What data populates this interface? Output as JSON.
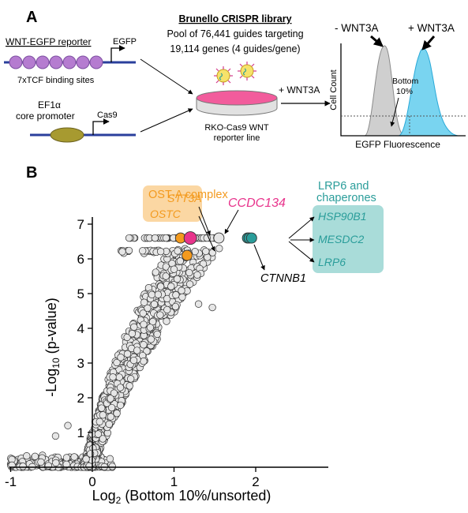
{
  "panelA": {
    "label": "A",
    "reporter_title": "WNT-EGFP reporter",
    "egfp_gene": "EGFP",
    "tcf_sites": "7xTCF binding sites",
    "promoter_label_1": "EF1α",
    "promoter_label_2": "core promoter",
    "cas9_gene": "Cas9",
    "library_title": "Brunello CRISPR library",
    "library_line1": "Pool of 76,441 guides targeting",
    "library_line2": "19,114 genes (4 guides/gene)",
    "dish_line1": "RKO-Cas9 WNT",
    "dish_line2": "reporter line",
    "add_wnt": "+ WNT3A",
    "histogram": {
      "minus_label": "- WNT3A",
      "plus_label": "+ WNT3A",
      "ylabel": "Cell Count",
      "xlabel": "EGFP Fluorescence",
      "bottom_label_1": "Bottom",
      "bottom_label_2": "10%",
      "colors": {
        "minus": "#cfcfcf",
        "plus": "#79d4f0",
        "plus_edge": "#2aa9d8"
      }
    }
  },
  "panelB": {
    "label": "B",
    "ost_group": "OST-A complex",
    "ost_genes": [
      "STT3A",
      "OSTC"
    ],
    "ccdc": "CCDC134",
    "lrp_group_1": "LRP6 and",
    "lrp_group_2": "chaperones",
    "lrp_genes": [
      "HSP90B1",
      "MESDC2",
      "LRP6"
    ],
    "ctnnb1": "CTNNB1",
    "colors": {
      "ost": "#f39a1e",
      "ost_box": "#fbd7a3",
      "ccdc": "#e8348c",
      "lrp": "#2a9d9a",
      "lrp_box": "#a9dcd9"
    }
  },
  "chart_data": {
    "type": "scatter",
    "title": "",
    "xlabel": "Log2 (Bottom 10%/unsorted)",
    "ylabel": "-Log10 (p-value)",
    "xlim": [
      -1.2,
      2.5
    ],
    "ylim": [
      0,
      7.2
    ],
    "xticks": [
      "-1",
      "0",
      "1",
      "2"
    ],
    "yticks": [
      "1",
      "2",
      "3",
      "4",
      "5",
      "6",
      "7"
    ],
    "grid": false,
    "highlighted": [
      {
        "gene": "STT3A",
        "x": 1.08,
        "y": 6.6,
        "group": "OST-A complex"
      },
      {
        "gene": "OSTC",
        "x": 1.16,
        "y": 6.1,
        "group": "OST-A complex"
      },
      {
        "gene": "CCDC134",
        "x": 1.2,
        "y": 6.6,
        "group": "CCDC134"
      },
      {
        "gene": "HSP90B1",
        "x": 1.9,
        "y": 6.6,
        "group": "LRP6 and chaperones"
      },
      {
        "gene": "MESDC2",
        "x": 1.92,
        "y": 6.6,
        "group": "LRP6 and chaperones"
      },
      {
        "gene": "LRP6",
        "x": 1.95,
        "y": 6.6,
        "group": "LRP6 and chaperones"
      },
      {
        "gene": "CTNNB1",
        "x": 1.55,
        "y": 6.6,
        "group": "unlabeled"
      }
    ],
    "background_trend": "dense cloud of gene-level points rising from y≈0 near x=-1 to y≈6.6 near x=1.6"
  }
}
